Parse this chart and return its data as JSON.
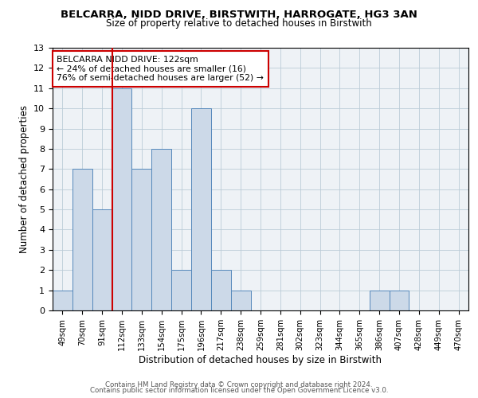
{
  "title1": "BELCARRA, NIDD DRIVE, BIRSTWITH, HARROGATE, HG3 3AN",
  "title2": "Size of property relative to detached houses in Birstwith",
  "xlabel": "Distribution of detached houses by size in Birstwith",
  "ylabel": "Number of detached properties",
  "categories": [
    "49sqm",
    "70sqm",
    "91sqm",
    "112sqm",
    "133sqm",
    "154sqm",
    "175sqm",
    "196sqm",
    "217sqm",
    "238sqm",
    "259sqm",
    "281sqm",
    "302sqm",
    "323sqm",
    "344sqm",
    "365sqm",
    "386sqm",
    "407sqm",
    "428sqm",
    "449sqm",
    "470sqm"
  ],
  "values": [
    1,
    7,
    5,
    11,
    7,
    8,
    2,
    10,
    2,
    1,
    0,
    0,
    0,
    0,
    0,
    0,
    1,
    1,
    0,
    0,
    0
  ],
  "bar_color": "#ccd9e8",
  "bar_edge_color": "#5588bb",
  "vline_x": 3.0,
  "vline_color": "#cc0000",
  "annotation_line1": "BELCARRA NIDD DRIVE: 122sqm",
  "annotation_line2": "← 24% of detached houses are smaller (16)",
  "annotation_line3": "76% of semi-detached houses are larger (52) →",
  "annotation_box_color": "#ffffff",
  "annotation_box_edge": "#cc0000",
  "ylim": [
    0,
    13
  ],
  "yticks": [
    0,
    1,
    2,
    3,
    4,
    5,
    6,
    7,
    8,
    9,
    10,
    11,
    12,
    13
  ],
  "grid_color": "#bbccd8",
  "bg_color": "#eef2f6",
  "footer1": "Contains HM Land Registry data © Crown copyright and database right 2024.",
  "footer2": "Contains public sector information licensed under the Open Government Licence v3.0."
}
